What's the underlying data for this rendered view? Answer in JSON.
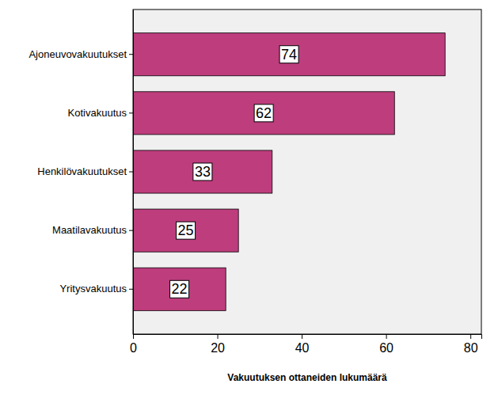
{
  "chart_data": {
    "type": "bar",
    "orientation": "horizontal",
    "categories": [
      "Ajoneuvovakuutukset",
      "Kotivakuutus",
      "Henkilövakuutukset",
      "Maatilavakuutus",
      "Yritysvakuutus"
    ],
    "values": [
      74,
      62,
      33,
      25,
      22
    ],
    "color": "#be3d7d",
    "xlabel": "Vakuutuksen ottaneiden lukumäärä",
    "xlim": [
      0,
      82.6
    ],
    "xticks": [
      0,
      20,
      40,
      60,
      80
    ],
    "grid": false,
    "data_labels": true
  }
}
